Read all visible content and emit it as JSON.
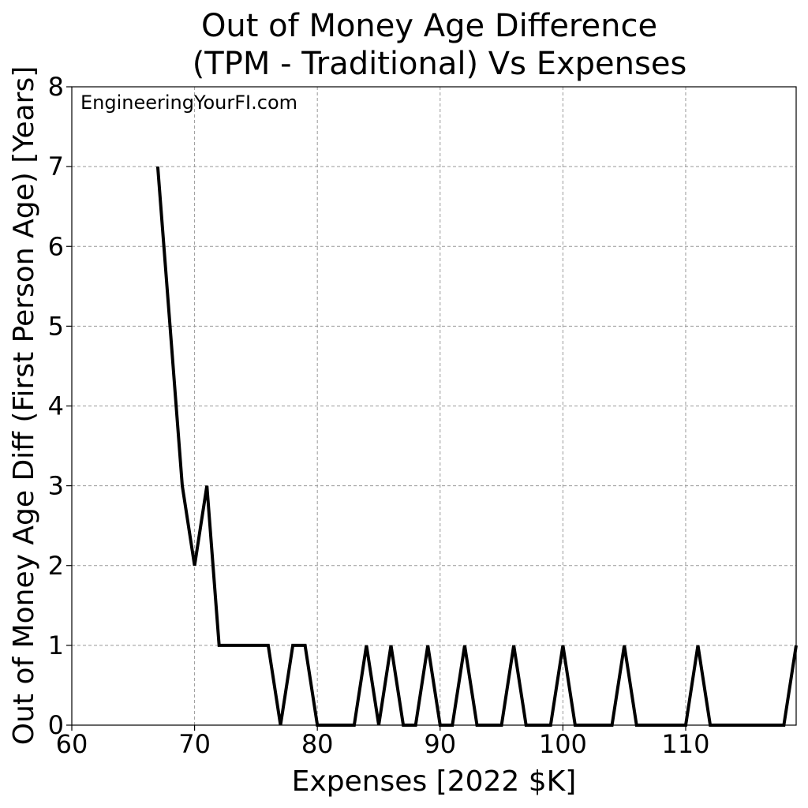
{
  "chart_data": {
    "type": "line",
    "title": [
      "Out of Money Age Difference",
      "(TPM - Traditional) Vs Expenses"
    ],
    "xlabel": "Expenses [2022 $K]",
    "ylabel": "Out of Money Age Diff (First Person Age) [Years]",
    "watermark": "EngineeringYourFI.com",
    "xlim": [
      60,
      119
    ],
    "ylim": [
      0,
      8
    ],
    "xticks": [
      60,
      70,
      80,
      90,
      100,
      110
    ],
    "yticks": [
      0,
      1,
      2,
      3,
      4,
      5,
      6,
      7,
      8
    ],
    "grid": true,
    "line_color": "#000000",
    "grid_color": "#999999",
    "series": [
      {
        "x": [
          67,
          68,
          69,
          70,
          71,
          72,
          73,
          74,
          75,
          76,
          77,
          78,
          79,
          80,
          81,
          82,
          83,
          84,
          85,
          86,
          87,
          88,
          89,
          90,
          91,
          92,
          93,
          94,
          95,
          96,
          97,
          98,
          99,
          100,
          101,
          102,
          103,
          104,
          105,
          106,
          107,
          108,
          109,
          110,
          111,
          112,
          113,
          114,
          115,
          116,
          117,
          118,
          119
        ],
        "values": [
          7,
          5,
          3,
          2,
          3,
          1,
          1,
          1,
          1,
          1,
          0,
          1,
          1,
          0,
          0,
          0,
          0,
          1,
          0,
          1,
          0,
          0,
          1,
          0,
          0,
          1,
          0,
          0,
          0,
          1,
          0,
          0,
          0,
          1,
          0,
          0,
          0,
          0,
          1,
          0,
          0,
          0,
          0,
          0,
          1,
          0,
          0,
          0,
          0,
          0,
          0,
          0,
          1
        ]
      }
    ]
  }
}
